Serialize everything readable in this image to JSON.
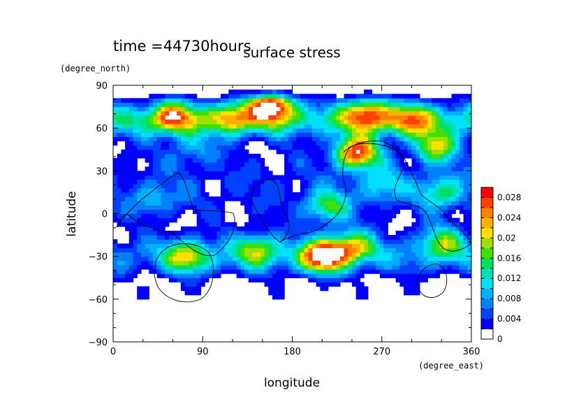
{
  "chart_data": {
    "type": "heatmap",
    "title": "surface stress",
    "subtitle": "time =44730hours",
    "xlabel": "longitude",
    "ylabel": "latitude",
    "x_units": "(degree_east)",
    "y_units": "(degree_north)",
    "xlim": [
      0,
      360
    ],
    "ylim": [
      -90,
      90
    ],
    "x_ticks": [
      "0",
      "90",
      "180",
      "270",
      "360"
    ],
    "y_ticks": [
      "90",
      "60",
      "30",
      "0",
      "−30",
      "−60",
      "−90"
    ],
    "x_tick_values": [
      0,
      90,
      180,
      270,
      360
    ],
    "y_tick_values": [
      90,
      60,
      30,
      0,
      -30,
      -60,
      -90
    ],
    "colorbar": {
      "min": 0,
      "max": 0.03,
      "levels": [
        0,
        0.002,
        0.004,
        0.006,
        0.008,
        0.01,
        0.012,
        0.014,
        0.016,
        0.018,
        0.02,
        0.022,
        0.024,
        0.026,
        0.028,
        0.03
      ],
      "labels": [
        "0",
        "0.004",
        "0.008",
        "0.012",
        "0.016",
        "0.02",
        "0.024",
        "0.028"
      ],
      "label_values": [
        0,
        0.004,
        0.008,
        0.012,
        0.016,
        0.02,
        0.024,
        0.028
      ],
      "colors": [
        "#ffffff",
        "#0000ff",
        "#0040ff",
        "#0080ff",
        "#00b0ff",
        "#00e0ff",
        "#00e0b0",
        "#00e060",
        "#40e000",
        "#a0e000",
        "#ffe000",
        "#ffb000",
        "#ff8000",
        "#ff4000",
        "#ff0000"
      ]
    },
    "notes": "Filled contour map of surface stress magnitude in longitude-latitude; white = below 0.002 or above 0.028",
    "features": [
      {
        "lon": 160,
        "lat": 76,
        "value": 0.03
      },
      {
        "lon": 60,
        "lat": 68,
        "value": 0.02
      },
      {
        "lon": 120,
        "lat": 68,
        "value": 0.016
      },
      {
        "lon": 255,
        "lat": 70,
        "value": 0.022
      },
      {
        "lon": 300,
        "lat": 66,
        "value": 0.016
      },
      {
        "lon": 245,
        "lat": 43,
        "value": 0.03
      },
      {
        "lon": 325,
        "lat": 47,
        "value": 0.02
      },
      {
        "lon": 210,
        "lat": -30,
        "value": 0.03
      },
      {
        "lon": 240,
        "lat": -23,
        "value": 0.02
      },
      {
        "lon": 75,
        "lat": -30,
        "value": 0.018
      },
      {
        "lon": 145,
        "lat": -25,
        "value": 0.016
      },
      {
        "lon": 215,
        "lat": 5,
        "value": 0.016
      },
      {
        "lon": 330,
        "lat": -20,
        "value": 0.016
      },
      {
        "lon": 330,
        "lat": 15,
        "value": 0.014
      },
      {
        "lon": 80,
        "lat": 45,
        "value": 0.008
      },
      {
        "lon": 40,
        "lat": 10,
        "value": 0.008
      },
      {
        "lon": 270,
        "lat": 20,
        "value": 0.01
      }
    ]
  }
}
